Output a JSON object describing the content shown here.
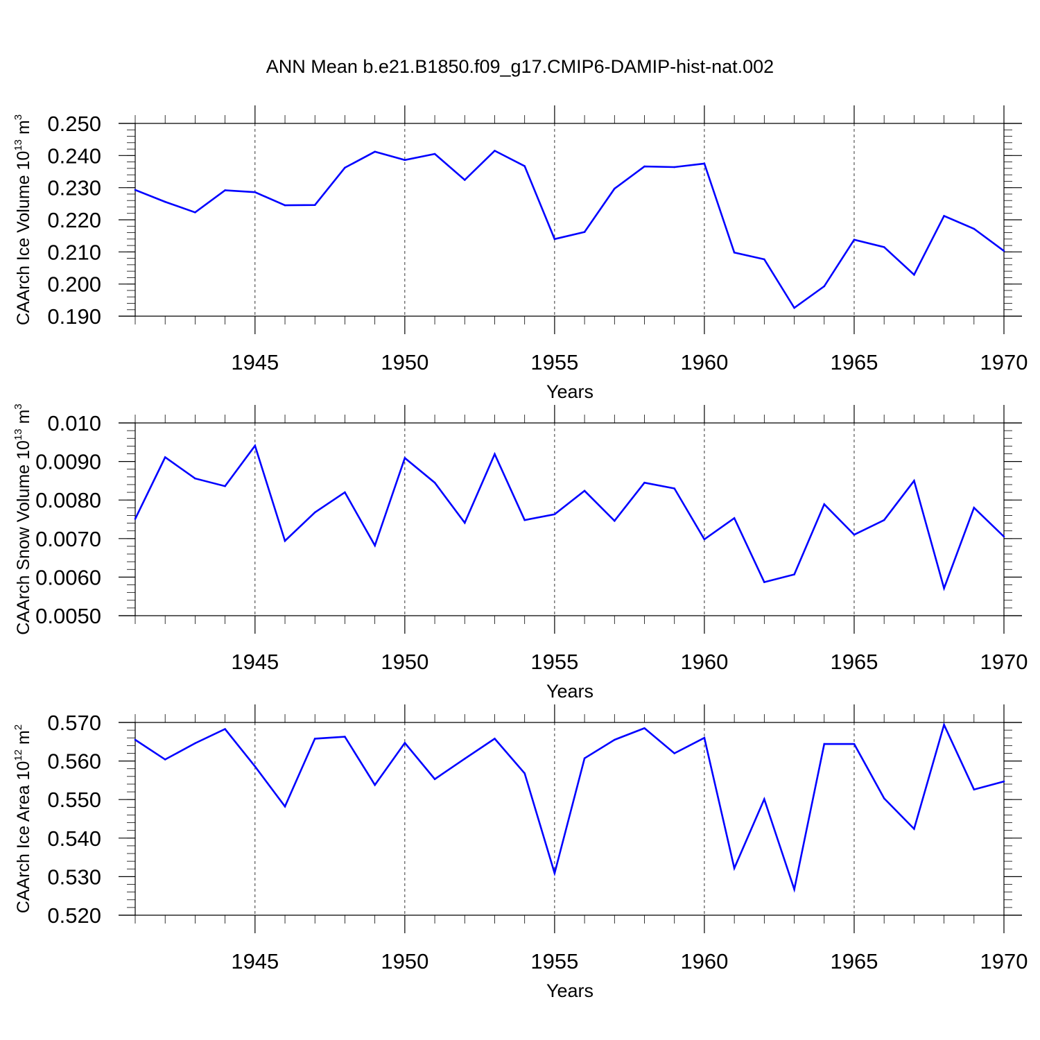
{
  "figure": {
    "title": "ANN Mean b.e21.B1850.f09_g17.CMIP6-DAMIP-hist-nat.002"
  },
  "chart_data": [
    {
      "type": "line",
      "ylabel": {
        "main": "CAArch Ice Volume 10",
        "exp": "13",
        "unit": " m",
        "unit_exp": "3"
      },
      "xlabel": "Years",
      "xlim": [
        1941,
        1970
      ],
      "ylim": [
        0.19,
        0.25
      ],
      "yticks": [
        0.19,
        0.2,
        0.21,
        0.22,
        0.23,
        0.24,
        0.25
      ],
      "ytick_labels": [
        "0.190",
        "0.200",
        "0.210",
        "0.220",
        "0.230",
        "0.240",
        "0.250"
      ],
      "xticks": [
        1945,
        1950,
        1955,
        1960,
        1965,
        1970
      ],
      "xtick_labels": [
        "1945",
        "1950",
        "1955",
        "1960",
        "1965",
        "1970"
      ],
      "grid": "vertical dashed at major x ticks",
      "series": [
        {
          "color": "#0000ff",
          "x": [
            1941,
            1942,
            1943,
            1944,
            1945,
            1946,
            1947,
            1948,
            1949,
            1950,
            1951,
            1952,
            1953,
            1954,
            1955,
            1956,
            1957,
            1958,
            1959,
            1960,
            1961,
            1962,
            1963,
            1964,
            1965,
            1966,
            1967,
            1968,
            1969,
            1970
          ],
          "y": [
            0.2293,
            0.2256,
            0.2223,
            0.2292,
            0.2286,
            0.2245,
            0.2246,
            0.2362,
            0.2412,
            0.2386,
            0.2405,
            0.2324,
            0.2415,
            0.2367,
            0.214,
            0.2162,
            0.2297,
            0.2366,
            0.2364,
            0.2375,
            0.2098,
            0.2077,
            0.1926,
            0.1993,
            0.2138,
            0.2115,
            0.2029,
            0.2212,
            0.2172,
            0.2103
          ]
        }
      ]
    },
    {
      "type": "line",
      "ylabel": {
        "main": "CAArch Snow Volume 10",
        "exp": "13",
        "unit": " m",
        "unit_exp": "3"
      },
      "xlabel": "Years",
      "xlim": [
        1941,
        1970
      ],
      "ylim": [
        0.005,
        0.01
      ],
      "yticks": [
        0.005,
        0.006,
        0.007,
        0.008,
        0.009,
        0.01
      ],
      "ytick_labels": [
        "0.0050",
        "0.0060",
        "0.0070",
        "0.0080",
        "0.0090",
        "0.010"
      ],
      "xticks": [
        1945,
        1950,
        1955,
        1960,
        1965,
        1970
      ],
      "xtick_labels": [
        "1945",
        "1950",
        "1955",
        "1960",
        "1965",
        "1970"
      ],
      "grid": "vertical dashed at major x ticks",
      "series": [
        {
          "color": "#0000ff",
          "x": [
            1941,
            1942,
            1943,
            1944,
            1945,
            1946,
            1947,
            1948,
            1949,
            1950,
            1951,
            1952,
            1953,
            1954,
            1955,
            1956,
            1957,
            1958,
            1959,
            1960,
            1961,
            1962,
            1963,
            1964,
            1965,
            1966,
            1967,
            1968,
            1969,
            1970
          ],
          "y": [
            0.00751,
            0.00911,
            0.00856,
            0.00836,
            0.00941,
            0.00694,
            0.00768,
            0.0082,
            0.00682,
            0.00909,
            0.00845,
            0.00741,
            0.00919,
            0.00748,
            0.00763,
            0.00824,
            0.00746,
            0.00845,
            0.0083,
            0.00698,
            0.00753,
            0.00587,
            0.00607,
            0.00789,
            0.0071,
            0.00748,
            0.0085,
            0.00571,
            0.0078,
            0.00705
          ]
        }
      ]
    },
    {
      "type": "line",
      "ylabel": {
        "main": "CAArch Ice Area 10",
        "exp": "12",
        "unit": " m",
        "unit_exp": "2"
      },
      "xlabel": "Years",
      "xlim": [
        1941,
        1970
      ],
      "ylim": [
        0.52,
        0.57
      ],
      "yticks": [
        0.52,
        0.53,
        0.54,
        0.55,
        0.56,
        0.57
      ],
      "ytick_labels": [
        "0.520",
        "0.530",
        "0.540",
        "0.550",
        "0.560",
        "0.570"
      ],
      "xticks": [
        1945,
        1950,
        1955,
        1960,
        1965,
        1970
      ],
      "xtick_labels": [
        "1945",
        "1950",
        "1955",
        "1960",
        "1965",
        "1970"
      ],
      "grid": "vertical dashed at major x ticks",
      "series": [
        {
          "color": "#0000ff",
          "x": [
            1941,
            1942,
            1943,
            1944,
            1945,
            1946,
            1947,
            1948,
            1949,
            1950,
            1951,
            1952,
            1953,
            1954,
            1955,
            1956,
            1957,
            1958,
            1959,
            1960,
            1961,
            1962,
            1963,
            1964,
            1965,
            1966,
            1967,
            1968,
            1969,
            1970
          ],
          "y": [
            0.5655,
            0.5604,
            0.5646,
            0.5683,
            0.5586,
            0.5482,
            0.5658,
            0.5663,
            0.5538,
            0.5647,
            0.5553,
            0.5606,
            0.5658,
            0.5568,
            0.5309,
            0.5607,
            0.5655,
            0.5685,
            0.562,
            0.566,
            0.5322,
            0.5501,
            0.5267,
            0.5644,
            0.5644,
            0.5503,
            0.5424,
            0.5694,
            0.5526,
            0.5547
          ]
        }
      ]
    }
  ]
}
